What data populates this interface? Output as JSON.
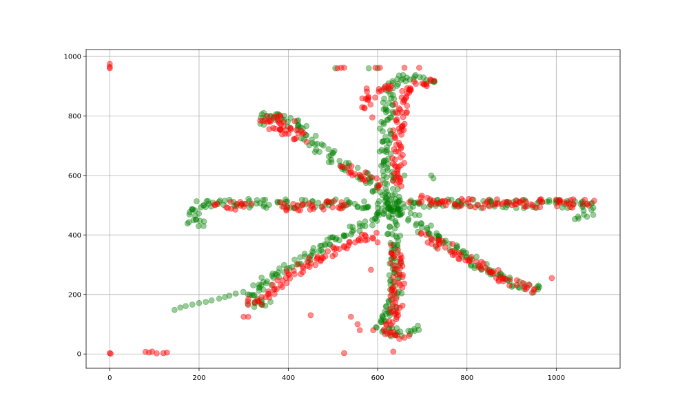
{
  "chart_data": {
    "type": "scatter",
    "title": "",
    "xlabel": "",
    "ylabel": "",
    "xlim": [
      -53,
      1143
    ],
    "ylim": [
      -48,
      1023
    ],
    "grid": true,
    "x_ticks": [
      0,
      200,
      400,
      600,
      800,
      1000
    ],
    "y_ticks": [
      0,
      200,
      400,
      600,
      800,
      1000
    ],
    "x_tick_labels": [
      "0",
      "200",
      "400",
      "600",
      "800",
      "1000"
    ],
    "y_tick_labels": [
      "0",
      "200",
      "400",
      "600",
      "800",
      "1000"
    ],
    "series": [
      {
        "color": "#008000",
        "alpha": 0.4,
        "strokes": [
          [
            [
              640,
              500
            ],
            [
              615,
              650
            ],
            [
              620,
              760
            ],
            [
              625,
              880
            ],
            [
              645,
              925
            ],
            [
              700,
              935
            ],
            [
              725,
              915
            ]
          ],
          [
            [
              640,
              500
            ],
            [
              570,
              590
            ],
            [
              480,
              680
            ],
            [
              420,
              760
            ],
            [
              385,
              800
            ],
            [
              355,
              805
            ],
            [
              345,
              770
            ]
          ],
          [
            [
              640,
              500
            ],
            [
              560,
              505
            ],
            [
              450,
              505
            ],
            [
              330,
              505
            ],
            [
              250,
              510
            ],
            [
              200,
              500
            ],
            [
              180,
              455
            ],
            [
              210,
              430
            ]
          ],
          [
            [
              640,
              500
            ],
            [
              560,
              430
            ],
            [
              470,
              360
            ],
            [
              400,
              290
            ],
            [
              350,
              240
            ],
            [
              310,
              195
            ],
            [
              330,
              165
            ],
            [
              360,
              175
            ]
          ],
          [
            [
              640,
              500
            ],
            [
              635,
              400
            ],
            [
              640,
              300
            ],
            [
              640,
              210
            ],
            [
              625,
              140
            ],
            [
              600,
              110
            ],
            [
              620,
              65
            ],
            [
              660,
              75
            ],
            [
              690,
              95
            ]
          ],
          [
            [
              640,
              500
            ],
            [
              710,
              420
            ],
            [
              790,
              340
            ],
            [
              860,
              270
            ],
            [
              900,
              240
            ],
            [
              930,
              220
            ],
            [
              960,
              230
            ]
          ],
          [
            [
              640,
              500
            ],
            [
              760,
              505
            ],
            [
              880,
              505
            ],
            [
              980,
              505
            ],
            [
              1050,
              505
            ],
            [
              1080,
              495
            ],
            [
              1050,
              455
            ]
          ]
        ],
        "points": [
          [
            145,
            148
          ],
          [
            158,
            156
          ],
          [
            170,
            161
          ],
          [
            185,
            166
          ],
          [
            200,
            171
          ],
          [
            215,
            175
          ],
          [
            228,
            180
          ],
          [
            245,
            186
          ],
          [
            258,
            191
          ],
          [
            268,
            196
          ],
          [
            282,
            203
          ],
          [
            660,
            600
          ],
          [
            720,
            600
          ],
          [
            725,
            590
          ],
          [
            690,
            410
          ],
          [
            730,
            360
          ],
          [
            505,
            960
          ],
          [
            580,
            960
          ],
          [
            600,
            960
          ]
        ]
      },
      {
        "color": "#ff0000",
        "alpha": 0.45,
        "strokes": [
          [
            [
              650,
              560
            ],
            [
              645,
              650
            ],
            [
              650,
              760
            ],
            [
              655,
              870
            ],
            [
              680,
              905
            ],
            [
              705,
              900
            ],
            [
              720,
              920
            ]
          ],
          [
            [
              560,
              830
            ],
            [
              590,
              880
            ],
            [
              630,
              900
            ]
          ],
          [
            [
              430,
              720
            ],
            [
              410,
              770
            ],
            [
              370,
              800
            ],
            [
              345,
              780
            ],
            [
              400,
              740
            ]
          ],
          [
            [
              595,
              570
            ],
            [
              520,
              630
            ]
          ],
          [
            [
              310,
              500
            ],
            [
              250,
              500
            ],
            [
              240,
              505
            ]
          ],
          [
            [
              380,
              495
            ],
            [
              460,
              500
            ],
            [
              530,
              500
            ]
          ],
          [
            [
              590,
              400
            ],
            [
              500,
              350
            ],
            [
              440,
              300
            ],
            [
              400,
              260
            ],
            [
              360,
              220
            ],
            [
              340,
              185
            ],
            [
              310,
              165
            ]
          ],
          [
            [
              645,
              360
            ],
            [
              645,
              250
            ],
            [
              640,
              150
            ],
            [
              620,
              80
            ],
            [
              660,
              55
            ]
          ],
          [
            [
              680,
              520
            ],
            [
              800,
              505
            ],
            [
              920,
              505
            ],
            [
              1000,
              505
            ],
            [
              1070,
              505
            ]
          ],
          [
            [
              700,
              400
            ],
            [
              780,
              340
            ],
            [
              850,
              280
            ],
            [
              900,
              240
            ],
            [
              950,
              215
            ]
          ]
        ],
        "points": [
          [
            0,
            975
          ],
          [
            0,
            965
          ],
          [
            0,
            960
          ],
          [
            0,
            3
          ],
          [
            2,
            1
          ],
          [
            80,
            7
          ],
          [
            88,
            5
          ],
          [
            95,
            8
          ],
          [
            105,
            2
          ],
          [
            120,
            3
          ],
          [
            128,
            5
          ],
          [
            510,
            960
          ],
          [
            518,
            962
          ],
          [
            525,
            962
          ],
          [
            595,
            962
          ],
          [
            605,
            962
          ],
          [
            660,
            962
          ],
          [
            693,
            962
          ],
          [
            588,
            795
          ],
          [
            300,
            125
          ],
          [
            310,
            125
          ],
          [
            450,
            130
          ],
          [
            525,
            3
          ],
          [
            585,
            283
          ],
          [
            600,
            375
          ],
          [
            540,
            125
          ],
          [
            555,
            100
          ],
          [
            560,
            80
          ],
          [
            590,
            80
          ],
          [
            635,
            8
          ],
          [
            630,
            305
          ],
          [
            990,
            255
          ],
          [
            1085,
            515
          ]
        ]
      }
    ]
  }
}
